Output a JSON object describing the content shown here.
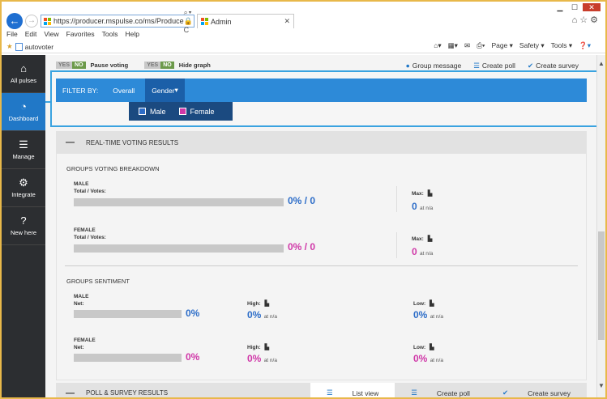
{
  "browser": {
    "url": "https://producer.mspulse.co/ms/Produce",
    "tab_title": "Admin",
    "menu": [
      "File",
      "Edit",
      "View",
      "Favorites",
      "Tools",
      "Help"
    ],
    "favorite": "autovoter",
    "commands": [
      "Page ▾",
      "Safety ▾",
      "Tools ▾"
    ]
  },
  "sidebar": {
    "items": [
      {
        "label": "All pulses",
        "icon": "home-icon"
      },
      {
        "label": "Dashboard",
        "icon": "dashboard-icon"
      },
      {
        "label": "Manage",
        "icon": "sliders-icon"
      },
      {
        "label": "Integrate",
        "icon": "gears-icon"
      },
      {
        "label": "New here",
        "icon": "question-icon"
      }
    ]
  },
  "controls": {
    "yes": "YES",
    "no": "NO",
    "pause_voting": "Pause voting",
    "hide_graph": "Hide graph",
    "group_message": "Group message",
    "create_poll": "Create poll",
    "create_survey": "Create survey"
  },
  "filter": {
    "label": "FILTER BY:",
    "overall": "Overall",
    "gender": "Gender",
    "male": "Male",
    "female": "Female"
  },
  "realtime": {
    "title": "REAL-TIME VOTING RESULTS",
    "breakdown_title": "GROUPS VOTING BREAKDOWN",
    "total_votes": "Total / Votes:",
    "max": "Max:",
    "male": "MALE",
    "female": "FEMALE",
    "male_value": "0% / 0",
    "female_value": "0% / 0",
    "max_male": "0",
    "max_female": "0",
    "at_na": "at n/a"
  },
  "sentiment": {
    "title": "GROUPS SENTIMENT",
    "net": "Net:",
    "high": "High:",
    "low": "Low:",
    "male_net": "0%",
    "male_high": "0%",
    "male_low": "0%",
    "female_net": "0%",
    "female_high": "0%",
    "female_low": "0%"
  },
  "poll": {
    "title": "POLL & SURVEY RESULTS",
    "list_view": "List view",
    "create_poll": "Create poll",
    "create_survey": "Create survey"
  },
  "colors": {
    "accent": "#2d8ad8",
    "male": "#2d6dc8",
    "female": "#d038a8",
    "sidebar": "#2c2e31"
  }
}
